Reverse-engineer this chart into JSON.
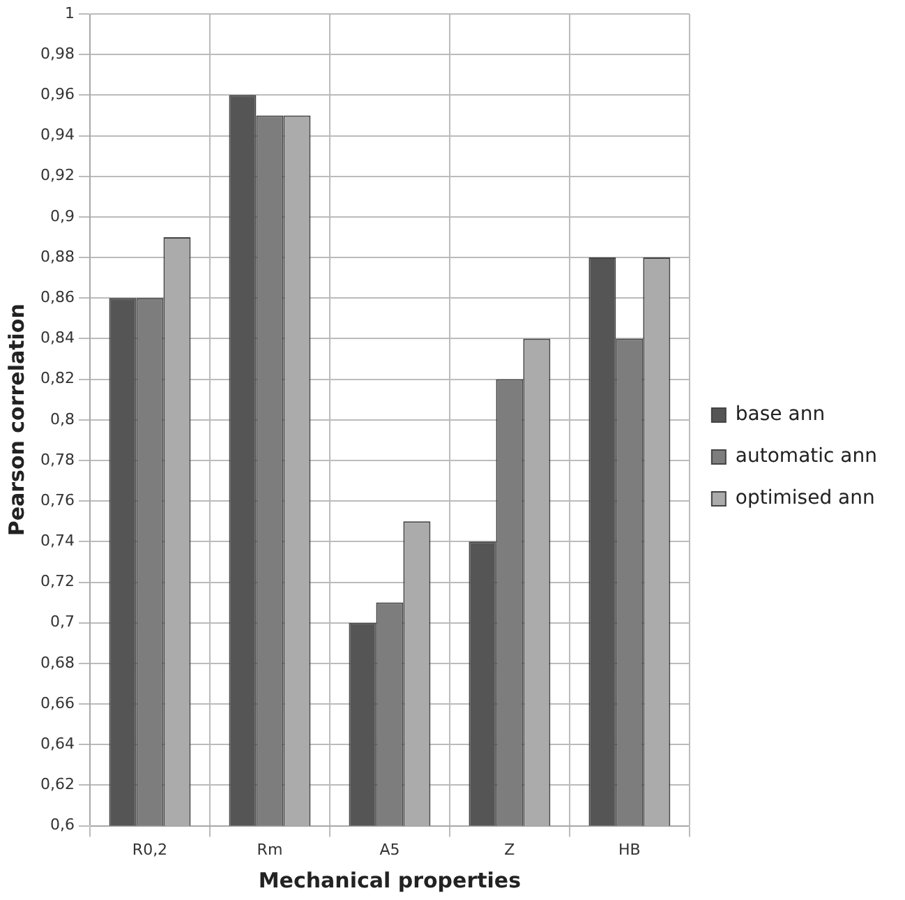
{
  "chart_data": {
    "type": "bar",
    "xlabel": "Mechanical properties",
    "ylabel": "Pearson correlation",
    "categories": [
      "R0,2",
      "Rm",
      "A5",
      "Z",
      "HB"
    ],
    "series": [
      {
        "name": "base ann",
        "color": "#555555",
        "values": [
          0.86,
          0.96,
          0.7,
          0.74,
          0.88
        ]
      },
      {
        "name": "automatic ann",
        "color": "#7d7d7d",
        "values": [
          0.86,
          0.95,
          0.71,
          0.82,
          0.84
        ]
      },
      {
        "name": "optimised ann",
        "color": "#ababab",
        "values": [
          0.89,
          0.95,
          0.75,
          0.84,
          0.88
        ]
      }
    ],
    "ylim": [
      0.6,
      1
    ],
    "yticks": [
      {
        "value": 0.6,
        "label": "0,6"
      },
      {
        "value": 0.62,
        "label": "0,62"
      },
      {
        "value": 0.64,
        "label": "0,64"
      },
      {
        "value": 0.66,
        "label": "0,66"
      },
      {
        "value": 0.68,
        "label": "0,68"
      },
      {
        "value": 0.7,
        "label": "0,7"
      },
      {
        "value": 0.72,
        "label": "0,72"
      },
      {
        "value": 0.74,
        "label": "0,74"
      },
      {
        "value": 0.76,
        "label": "0,76"
      },
      {
        "value": 0.78,
        "label": "0,78"
      },
      {
        "value": 0.8,
        "label": "0,8"
      },
      {
        "value": 0.82,
        "label": "0,82"
      },
      {
        "value": 0.84,
        "label": "0,84"
      },
      {
        "value": 0.86,
        "label": "0,86"
      },
      {
        "value": 0.88,
        "label": "0,88"
      },
      {
        "value": 0.9,
        "label": "0,9"
      },
      {
        "value": 0.92,
        "label": "0,92"
      },
      {
        "value": 0.94,
        "label": "0,94"
      },
      {
        "value": 0.96,
        "label": "0,96"
      },
      {
        "value": 0.98,
        "label": "0,98"
      },
      {
        "value": 1,
        "label": "1"
      }
    ],
    "grid": true,
    "legend": "right"
  }
}
